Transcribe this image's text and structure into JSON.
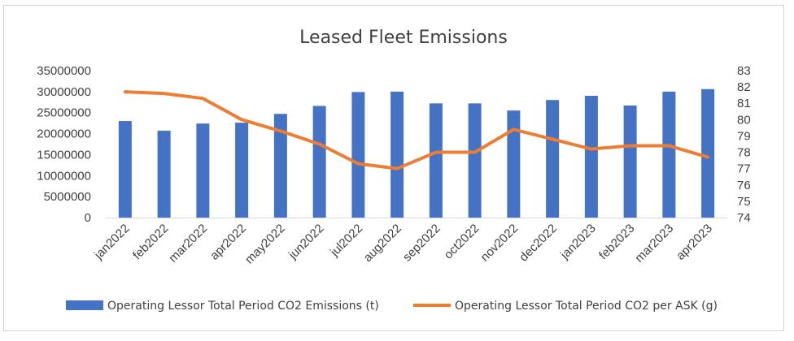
{
  "chart_data": {
    "type": "bar",
    "title": "Leased Fleet Emissions",
    "categories": [
      "jan2022",
      "feb2022",
      "mar2022",
      "apr2022",
      "may2022",
      "jun2022",
      "jul2022",
      "aug2022",
      "sep2022",
      "oct2022",
      "nov2022",
      "dec2022",
      "jan2023",
      "feb2023",
      "mar2023",
      "apr2023"
    ],
    "series": [
      {
        "name": "Operating Lessor Total Period CO2 Emissions (t)",
        "type": "bar",
        "axis": "left",
        "color": "#4472C4",
        "values": [
          23000000,
          20700000,
          22400000,
          22600000,
          24700000,
          26600000,
          29900000,
          30000000,
          27200000,
          27200000,
          25500000,
          28000000,
          29000000,
          26700000,
          30000000,
          30600000
        ]
      },
      {
        "name": "Operating Lessor Total Period CO2 per ASK (g)",
        "type": "line",
        "axis": "right",
        "color": "#ED7D31",
        "values": [
          81.7,
          81.6,
          81.3,
          80.0,
          79.3,
          78.5,
          77.3,
          77.0,
          78.0,
          78.0,
          79.4,
          78.8,
          78.2,
          78.4,
          78.4,
          77.7
        ]
      }
    ],
    "y_left": {
      "ylim": [
        0,
        35000000
      ],
      "ticks": [
        "0",
        "5000000",
        "10000000",
        "15000000",
        "20000000",
        "25000000",
        "30000000",
        "35000000"
      ]
    },
    "y_right": {
      "ylim": [
        74,
        83
      ],
      "ticks": [
        "74",
        "75",
        "76",
        "77",
        "78",
        "79",
        "80",
        "81",
        "82",
        "83"
      ]
    },
    "grid": false,
    "legend_position": "bottom"
  }
}
